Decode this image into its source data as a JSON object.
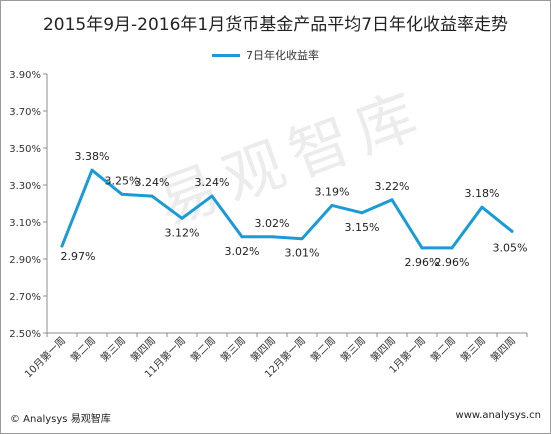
{
  "chart_data": {
    "type": "line",
    "title": "2015年9月-2016年1月货币基金产品平均7日年化收益率走势",
    "categories": [
      "10月第一周",
      "第二周",
      "第三周",
      "第四周",
      "11月第一周",
      "第二周",
      "第三周",
      "第四周",
      "12月第一周",
      "第二周",
      "第三周",
      "第四周",
      "1月第一周",
      "第二周",
      "第三周",
      "第四周"
    ],
    "series": [
      {
        "name": "7日年化收益率",
        "values": [
          2.97,
          3.38,
          3.25,
          3.24,
          3.12,
          3.24,
          3.02,
          3.02,
          3.01,
          3.19,
          3.15,
          3.22,
          2.96,
          2.96,
          3.18,
          3.05
        ],
        "labels": [
          "2.97%",
          "3.38%",
          "3.25%",
          "3.24%",
          "3.12%",
          "3.24%",
          "3.02%",
          "3.02%",
          "3.01%",
          "3.19%",
          "3.15%",
          "3.22%",
          "2.96%",
          "2.96%",
          "3.18%",
          "3.05%"
        ]
      }
    ],
    "ylim": [
      2.5,
      3.9
    ],
    "yticks": [
      "3.90%",
      "3.70%",
      "3.50%",
      "3.30%",
      "3.10%",
      "2.90%",
      "2.70%",
      "2.50%"
    ],
    "ytick_values": [
      3.9,
      3.7,
      3.5,
      3.3,
      3.1,
      2.9,
      2.7,
      2.5
    ],
    "grid": false,
    "legend": "top-center",
    "line_color": "#1a9bd7"
  },
  "footer": {
    "source": "© Analysys 易观智库",
    "website": "www.analysys.cn"
  },
  "watermark": "易观智库"
}
